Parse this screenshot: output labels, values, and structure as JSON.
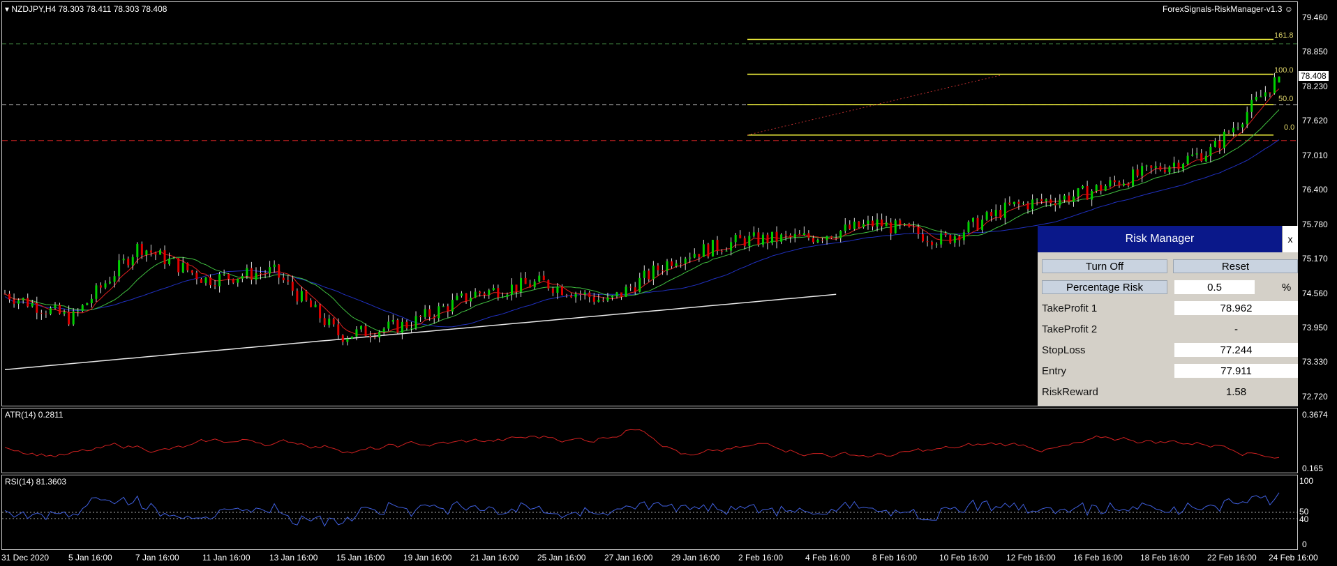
{
  "header": {
    "symbol_info": "NZDJPY,H4  78.303 78.411 78.303 78.408",
    "indicator_name": "ForexSignals-RiskManager-v1.3"
  },
  "colors": {
    "bull": "#00d000",
    "bear": "#e00000",
    "ma_fast": "#e02020",
    "ma_mid": "#40c040",
    "ma_slow": "#2030c0",
    "ma_long": "#e8e8e8",
    "fib": "#ffff40",
    "atr": "#d02020",
    "rsi": "#4060e0"
  },
  "price_axis": [
    "79.460",
    "78.850",
    "78.230",
    "77.620",
    "77.010",
    "76.400",
    "75.780",
    "75.170",
    "74.560",
    "73.950",
    "73.330",
    "72.720"
  ],
  "current_price": "78.408",
  "fib_levels": [
    "161.8",
    "100.0",
    "50.0",
    "0.0"
  ],
  "atr": {
    "label": "ATR(14) 0.2811",
    "axis_top": "0.3674",
    "axis_bottom": "0.165"
  },
  "rsi": {
    "label": "RSI(14) 81.3603",
    "axis": [
      "100",
      "50",
      "40",
      "0"
    ]
  },
  "time_axis": [
    "31 Dec 2020",
    "5 Jan 16:00",
    "7 Jan 16:00",
    "11 Jan 16:00",
    "13 Jan 16:00",
    "15 Jan 16:00",
    "19 Jan 16:00",
    "21 Jan 16:00",
    "25 Jan 16:00",
    "27 Jan 16:00",
    "29 Jan 16:00",
    "2 Feb 16:00",
    "4 Feb 16:00",
    "8 Feb 16:00",
    "10 Feb 16:00",
    "12 Feb 16:00",
    "16 Feb 16:00",
    "18 Feb 16:00",
    "22 Feb 16:00",
    "24 Feb 16:00"
  ],
  "risk_manager": {
    "title": "Risk Manager",
    "close": "x",
    "turn_off": "Turn Off",
    "reset": "Reset",
    "percentage_risk_label": "Percentage Risk",
    "percentage_risk_value": "0.5",
    "percent_sign": "%",
    "tp1_label": "TakeProfit 1",
    "tp1_value": "78.962",
    "tp2_label": "TakeProfit 2",
    "tp2_value": "-",
    "sl_label": "StopLoss",
    "sl_value": "77.244",
    "entry_label": "Entry",
    "entry_value": "77.911",
    "rr_label": "RiskReward",
    "rr_value": "1.58"
  },
  "chart_data": {
    "type": "candlestick",
    "symbol": "NZDJPY",
    "timeframe": "H4",
    "ylim": [
      72.72,
      79.46
    ],
    "last": {
      "open": 78.303,
      "high": 78.411,
      "low": 78.303,
      "close": 78.408
    },
    "close_path": [
      {
        "x": "31 Dec 2020",
        "y": 74.55
      },
      {
        "x": "5 Jan 16:00",
        "y": 74.1
      },
      {
        "x": "7 Jan 16:00",
        "y": 75.4
      },
      {
        "x": "11 Jan 16:00",
        "y": 74.8
      },
      {
        "x": "13 Jan 16:00",
        "y": 74.95
      },
      {
        "x": "15 Jan 16:00",
        "y": 73.8
      },
      {
        "x": "19 Jan 16:00",
        "y": 74.0
      },
      {
        "x": "21 Jan 16:00",
        "y": 74.55
      },
      {
        "x": "25 Jan 16:00",
        "y": 74.75
      },
      {
        "x": "27 Jan 16:00",
        "y": 74.4
      },
      {
        "x": "29 Jan 16:00",
        "y": 75.2
      },
      {
        "x": "2 Feb 16:00",
        "y": 75.5
      },
      {
        "x": "4 Feb 16:00",
        "y": 75.55
      },
      {
        "x": "8 Feb 16:00",
        "y": 75.8
      },
      {
        "x": "10 Feb 16:00",
        "y": 75.5
      },
      {
        "x": "12 Feb 16:00",
        "y": 76.1
      },
      {
        "x": "16 Feb 16:00",
        "y": 76.3
      },
      {
        "x": "18 Feb 16:00",
        "y": 76.7
      },
      {
        "x": "22 Feb 16:00",
        "y": 77.1
      },
      {
        "x": "24 Feb 16:00",
        "y": 78.408
      }
    ]
  }
}
